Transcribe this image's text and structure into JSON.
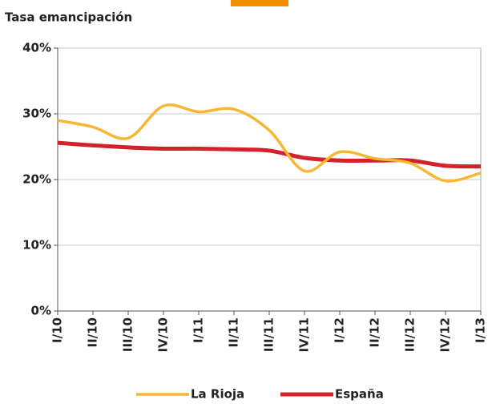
{
  "chart_data": {
    "type": "line",
    "title": "Tasa emancipación",
    "categories": [
      "I/10",
      "II/10",
      "III/10",
      "IV/10",
      "I/11",
      "II/11",
      "III/11",
      "IV/11",
      "I/12",
      "II/12",
      "III/12",
      "IV/12",
      "I/13"
    ],
    "series": [
      {
        "name": "La Rioja",
        "color": "#f7b731",
        "values": [
          29.0,
          28.0,
          26.3,
          31.2,
          30.3,
          30.7,
          27.5,
          21.3,
          24.2,
          23.2,
          22.5,
          19.8,
          21.0
        ]
      },
      {
        "name": "España",
        "color": "#d2232a",
        "values": [
          25.6,
          25.2,
          24.9,
          24.7,
          24.7,
          24.6,
          24.4,
          23.3,
          22.9,
          22.9,
          22.9,
          22.1,
          22.0
        ]
      }
    ],
    "ylim": [
      0,
      40
    ],
    "yticks": [
      {
        "value": 0,
        "label": "0%"
      },
      {
        "value": 10,
        "label": "10%"
      },
      {
        "value": 20,
        "label": "20%"
      },
      {
        "value": 30,
        "label": "30%"
      },
      {
        "value": 40,
        "label": "40%"
      }
    ],
    "grid": true,
    "legend": "bottom"
  }
}
